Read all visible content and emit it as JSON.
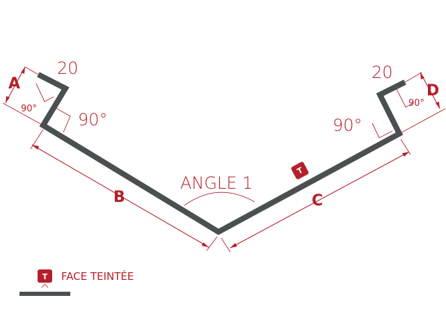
{
  "labels": {
    "flange_left": "20",
    "flange_right": "20",
    "angle_left_big": "90°",
    "angle_left_small": "90°",
    "angle_right_big": "90°",
    "angle_right_small": "90°",
    "dim_a": "A",
    "dim_b": "B",
    "dim_c": "C",
    "dim_d": "D",
    "angle_main": "ANGLE 1",
    "tinted_badge": "T"
  },
  "legend": {
    "badge": "T",
    "text": "FACE TEINTÉE"
  },
  "colors": {
    "accent": "#b5202a",
    "profile": "#4a4f51"
  }
}
